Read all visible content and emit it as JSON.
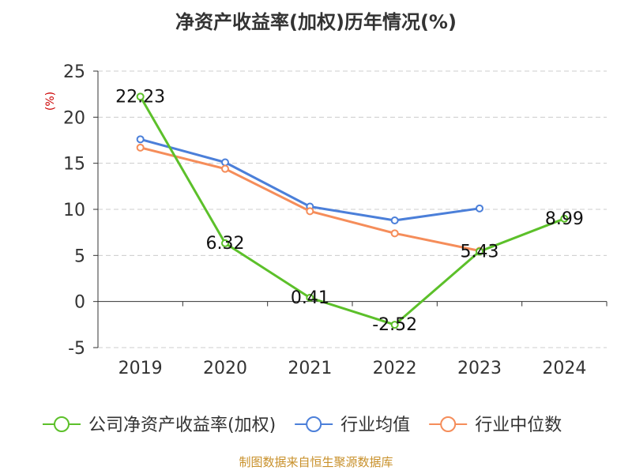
{
  "chart_data": {
    "type": "line",
    "title": "净资产收益率(加权)历年情况(%)",
    "ylabel": "(%)",
    "categories": [
      "2019",
      "2020",
      "2021",
      "2022",
      "2023",
      "2024"
    ],
    "ylim": [
      -5,
      25
    ],
    "yticks": [
      -5,
      0,
      5,
      10,
      15,
      20,
      25
    ],
    "grid": true,
    "legend_position": "bottom",
    "series": [
      {
        "name": "公司净资产收益率(加权)",
        "color": "#5cc02a",
        "values": [
          22.23,
          6.32,
          0.41,
          -2.52,
          5.43,
          8.99
        ],
        "labels": [
          "22.23",
          "6.32",
          "0.41",
          "-2.52",
          "5.43",
          "8.99"
        ]
      },
      {
        "name": "行业均值",
        "color": "#4b7fd9",
        "values": [
          17.6,
          15.1,
          10.3,
          8.8,
          10.1,
          null
        ]
      },
      {
        "name": "行业中位数",
        "color": "#f58d5a",
        "values": [
          16.7,
          14.4,
          9.8,
          7.4,
          5.5,
          null
        ]
      }
    ]
  },
  "source": "制图数据来自恒生聚源数据库"
}
